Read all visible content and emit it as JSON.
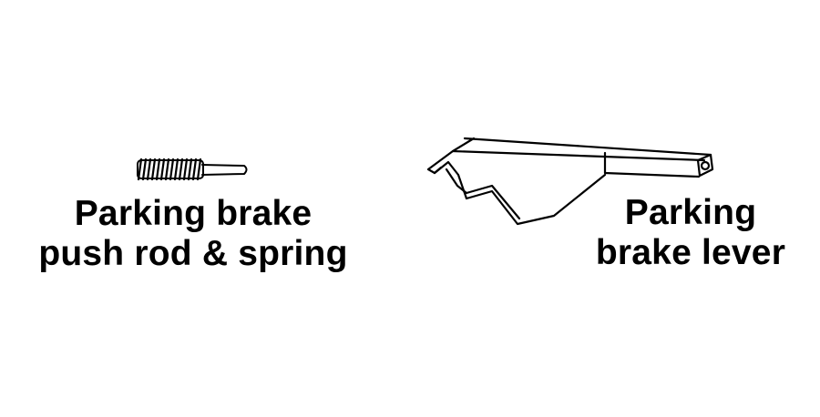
{
  "parts": {
    "push_rod": {
      "label_line1": "Parking brake",
      "label_line2": "push rod & spring"
    },
    "lever": {
      "label_line1": "Parking",
      "label_line2": "brake lever"
    }
  },
  "colors": {
    "ink": "#000000",
    "background": "#ffffff"
  }
}
